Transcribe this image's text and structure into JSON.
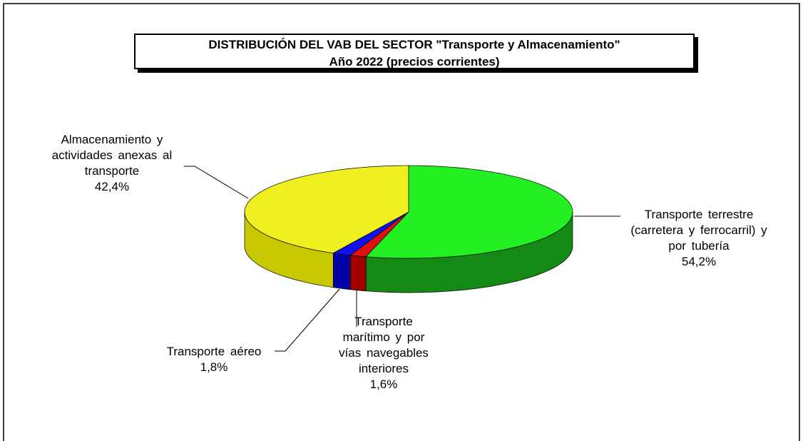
{
  "chart_data": {
    "type": "pie3d",
    "title": "DISTRIBUCIÓN DEL VAB DEL SECTOR \"Transporte y Almacenamiento\"",
    "subtitle": "Año 2022 (precios corrientes)",
    "categories": [
      "Transporte terrestre (carretera y ferrocarril) y por tubería",
      "Transporte marítimo y por vías navegables interiores",
      "Transporte aéreo",
      "Almacenamiento y actividades anexas al transporte"
    ],
    "values": [
      54.2,
      1.6,
      1.8,
      42.4
    ],
    "value_labels": [
      "54,2%",
      "1,6%",
      "1,8%",
      "42,4%"
    ],
    "colors": [
      "#22f022",
      "#e01010",
      "#1010f0",
      "#f0f020"
    ],
    "side_colors": [
      "#148a14",
      "#a00000",
      "#0000a8",
      "#c8c800"
    ]
  }
}
